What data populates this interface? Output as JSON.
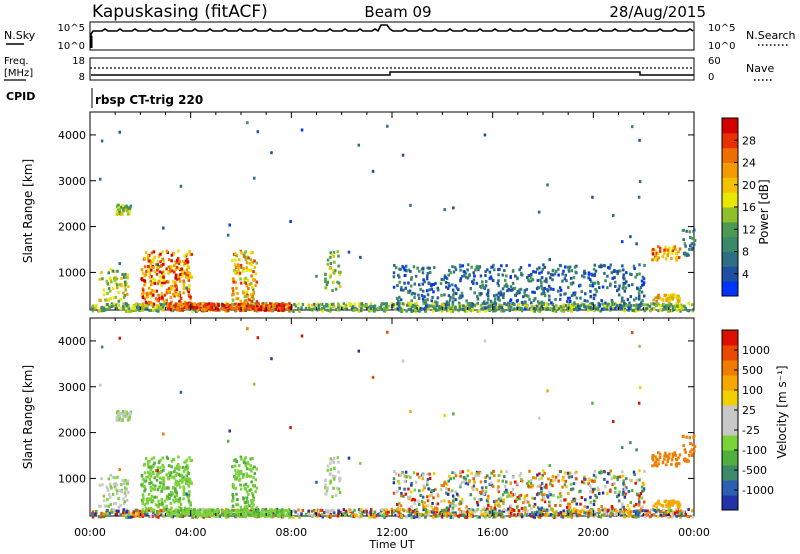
{
  "header": {
    "station": "Kapuskasing (fitACF)",
    "beam": "Beam 09",
    "date": "28/Aug/2015"
  },
  "top_panels": {
    "nsky_label": "N.Sky",
    "nsky_ticks": [
      "10^5",
      "10^0"
    ],
    "nsearch_label": "N.Search",
    "nsearch_ticks": [
      "10^5",
      "10^0"
    ],
    "freq_label": "Freq.",
    "freq_unit": "[MHz]",
    "freq_ticks": [
      "18",
      "8"
    ],
    "nave_label": "Nave",
    "nave_ticks": [
      "60",
      "0"
    ],
    "cpid_label": "CPID",
    "cpid_value": "rbsp CT-trig 220"
  },
  "chart_data": [
    {
      "type": "heatmap",
      "name": "power",
      "xlabel": "Time UT",
      "ylabel": "Slant Range [km]",
      "x_ticks": [
        "00:00",
        "04:00",
        "08:00",
        "12:00",
        "16:00",
        "20:00",
        "00:00"
      ],
      "xlim_hours": [
        0,
        24
      ],
      "ylim": [
        180,
        4500
      ],
      "y_ticks": [
        1000,
        2000,
        3000,
        4000
      ],
      "colorbar": {
        "label": "Power [dB]",
        "ticks": [
          "28",
          "24",
          "20",
          "16",
          "12",
          "8",
          "4"
        ],
        "range": [
          0,
          30
        ],
        "colors": [
          "#0033ff",
          "#1f4fa0",
          "#2e6f86",
          "#3a8a6a",
          "#4c9a52",
          "#8fbf2a",
          "#e8e800",
          "#f2c200",
          "#f39a00",
          "#ef6e00",
          "#e83000",
          "#d40000"
        ]
      }
    },
    {
      "type": "heatmap",
      "name": "velocity",
      "xlabel": "Time UT",
      "ylabel": "Slant Range [km]",
      "x_ticks": [
        "00:00",
        "04:00",
        "08:00",
        "12:00",
        "16:00",
        "20:00",
        "00:00"
      ],
      "xlim_hours": [
        0,
        24
      ],
      "ylim": [
        180,
        4500
      ],
      "y_ticks": [
        1000,
        2000,
        3000,
        4000
      ],
      "colorbar": {
        "label": "Velocity [m s⁻¹]",
        "ticks": [
          "1000",
          "500",
          "100",
          "25",
          "-25",
          "-100",
          "-500",
          "-1000"
        ],
        "colors": [
          "#2233aa",
          "#2d5fb0",
          "#3c8a6a",
          "#4fae3c",
          "#7cd23a",
          "#c8c8c8",
          "#c8c8c8",
          "#f2d000",
          "#f5a800",
          "#f07d00",
          "#e84a00",
          "#dd1000"
        ]
      }
    }
  ]
}
